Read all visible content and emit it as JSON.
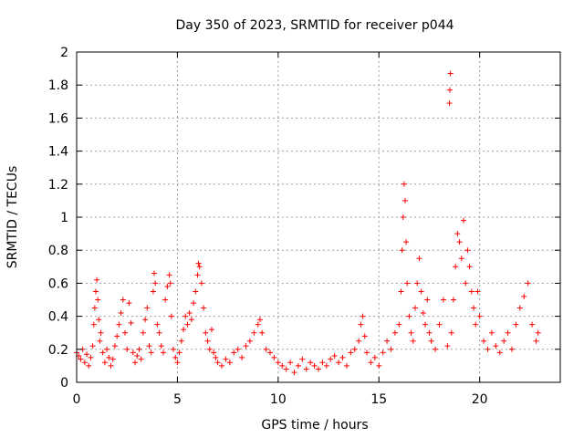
{
  "chart_data": {
    "type": "scatter",
    "title": "Day 350 of 2023, SRMTID for receiver p044",
    "xlabel": "GPS time / hours",
    "ylabel": "SRMTID / TECUs",
    "xlim": [
      0,
      24
    ],
    "ylim": [
      0,
      2
    ],
    "x_ticks": [
      0,
      5,
      10,
      15,
      20
    ],
    "x_tick_labels": [
      "0",
      "5",
      "10",
      "15",
      "20"
    ],
    "y_ticks": [
      0,
      0.2,
      0.4,
      0.6,
      0.8,
      1,
      1.2,
      1.4,
      1.6,
      1.8,
      2
    ],
    "y_tick_labels": [
      "0",
      "0.2",
      "0.4",
      "0.6",
      "0.8",
      "1",
      "1.2",
      "1.4",
      "1.6",
      "1.8",
      "2"
    ],
    "grid": true,
    "marker": "+",
    "series_color": "#ff0000",
    "series": [
      {
        "name": "SRMTID",
        "points": [
          [
            0.0,
            0.18
          ],
          [
            0.1,
            0.16
          ],
          [
            0.2,
            0.14
          ],
          [
            0.3,
            0.2
          ],
          [
            0.4,
            0.12
          ],
          [
            0.5,
            0.17
          ],
          [
            0.6,
            0.1
          ],
          [
            0.7,
            0.15
          ],
          [
            0.8,
            0.22
          ],
          [
            0.85,
            0.35
          ],
          [
            0.9,
            0.45
          ],
          [
            0.95,
            0.55
          ],
          [
            1.0,
            0.62
          ],
          [
            1.05,
            0.5
          ],
          [
            1.1,
            0.38
          ],
          [
            1.15,
            0.25
          ],
          [
            1.2,
            0.3
          ],
          [
            1.3,
            0.18
          ],
          [
            1.4,
            0.12
          ],
          [
            1.5,
            0.2
          ],
          [
            1.6,
            0.15
          ],
          [
            1.7,
            0.1
          ],
          [
            1.8,
            0.14
          ],
          [
            1.9,
            0.22
          ],
          [
            2.0,
            0.28
          ],
          [
            2.1,
            0.35
          ],
          [
            2.2,
            0.42
          ],
          [
            2.3,
            0.5
          ],
          [
            2.4,
            0.3
          ],
          [
            2.5,
            0.2
          ],
          [
            2.6,
            0.48
          ],
          [
            2.7,
            0.36
          ],
          [
            2.8,
            0.18
          ],
          [
            2.9,
            0.12
          ],
          [
            3.0,
            0.16
          ],
          [
            3.1,
            0.2
          ],
          [
            3.2,
            0.14
          ],
          [
            3.3,
            0.3
          ],
          [
            3.4,
            0.38
          ],
          [
            3.5,
            0.45
          ],
          [
            3.6,
            0.22
          ],
          [
            3.7,
            0.18
          ],
          [
            3.8,
            0.55
          ],
          [
            3.85,
            0.66
          ],
          [
            3.9,
            0.6
          ],
          [
            4.0,
            0.35
          ],
          [
            4.1,
            0.3
          ],
          [
            4.2,
            0.22
          ],
          [
            4.3,
            0.18
          ],
          [
            4.4,
            0.5
          ],
          [
            4.5,
            0.58
          ],
          [
            4.6,
            0.65
          ],
          [
            4.65,
            0.6
          ],
          [
            4.7,
            0.4
          ],
          [
            4.8,
            0.2
          ],
          [
            4.9,
            0.15
          ],
          [
            5.0,
            0.12
          ],
          [
            5.1,
            0.18
          ],
          [
            5.2,
            0.25
          ],
          [
            5.3,
            0.32
          ],
          [
            5.4,
            0.4
          ],
          [
            5.5,
            0.35
          ],
          [
            5.6,
            0.42
          ],
          [
            5.7,
            0.38
          ],
          [
            5.8,
            0.48
          ],
          [
            5.9,
            0.55
          ],
          [
            6.0,
            0.65
          ],
          [
            6.05,
            0.72
          ],
          [
            6.1,
            0.7
          ],
          [
            6.2,
            0.6
          ],
          [
            6.3,
            0.45
          ],
          [
            6.4,
            0.3
          ],
          [
            6.5,
            0.25
          ],
          [
            6.6,
            0.2
          ],
          [
            6.7,
            0.32
          ],
          [
            6.8,
            0.18
          ],
          [
            6.9,
            0.15
          ],
          [
            7.0,
            0.12
          ],
          [
            7.2,
            0.1
          ],
          [
            7.4,
            0.14
          ],
          [
            7.6,
            0.12
          ],
          [
            7.8,
            0.18
          ],
          [
            8.0,
            0.2
          ],
          [
            8.2,
            0.15
          ],
          [
            8.4,
            0.22
          ],
          [
            8.6,
            0.25
          ],
          [
            8.8,
            0.3
          ],
          [
            9.0,
            0.35
          ],
          [
            9.1,
            0.38
          ],
          [
            9.2,
            0.3
          ],
          [
            9.4,
            0.2
          ],
          [
            9.6,
            0.18
          ],
          [
            9.8,
            0.15
          ],
          [
            10.0,
            0.12
          ],
          [
            10.2,
            0.1
          ],
          [
            10.4,
            0.08
          ],
          [
            10.6,
            0.12
          ],
          [
            10.8,
            0.06
          ],
          [
            11.0,
            0.1
          ],
          [
            11.2,
            0.14
          ],
          [
            11.4,
            0.08
          ],
          [
            11.6,
            0.12
          ],
          [
            11.8,
            0.1
          ],
          [
            12.0,
            0.08
          ],
          [
            12.2,
            0.12
          ],
          [
            12.4,
            0.1
          ],
          [
            12.6,
            0.14
          ],
          [
            12.8,
            0.16
          ],
          [
            13.0,
            0.12
          ],
          [
            13.2,
            0.15
          ],
          [
            13.4,
            0.1
          ],
          [
            13.6,
            0.18
          ],
          [
            13.8,
            0.2
          ],
          [
            14.0,
            0.25
          ],
          [
            14.1,
            0.35
          ],
          [
            14.2,
            0.4
          ],
          [
            14.3,
            0.28
          ],
          [
            14.4,
            0.18
          ],
          [
            14.6,
            0.12
          ],
          [
            14.8,
            0.15
          ],
          [
            15.0,
            0.1
          ],
          [
            15.2,
            0.18
          ],
          [
            15.4,
            0.25
          ],
          [
            15.6,
            0.2
          ],
          [
            15.8,
            0.3
          ],
          [
            16.0,
            0.35
          ],
          [
            16.1,
            0.55
          ],
          [
            16.15,
            0.8
          ],
          [
            16.2,
            1.0
          ],
          [
            16.25,
            1.2
          ],
          [
            16.3,
            1.1
          ],
          [
            16.35,
            0.85
          ],
          [
            16.4,
            0.6
          ],
          [
            16.5,
            0.4
          ],
          [
            16.6,
            0.3
          ],
          [
            16.7,
            0.25
          ],
          [
            16.8,
            0.45
          ],
          [
            16.9,
            0.6
          ],
          [
            17.0,
            0.75
          ],
          [
            17.1,
            0.55
          ],
          [
            17.2,
            0.42
          ],
          [
            17.3,
            0.35
          ],
          [
            17.4,
            0.5
          ],
          [
            17.5,
            0.3
          ],
          [
            17.6,
            0.25
          ],
          [
            17.8,
            0.2
          ],
          [
            18.0,
            0.35
          ],
          [
            18.2,
            0.5
          ],
          [
            18.4,
            0.22
          ],
          [
            18.5,
            1.69
          ],
          [
            18.52,
            1.77
          ],
          [
            18.55,
            1.87
          ],
          [
            18.6,
            0.3
          ],
          [
            18.7,
            0.5
          ],
          [
            18.8,
            0.7
          ],
          [
            18.9,
            0.9
          ],
          [
            19.0,
            0.85
          ],
          [
            19.1,
            0.75
          ],
          [
            19.2,
            0.98
          ],
          [
            19.3,
            0.6
          ],
          [
            19.4,
            0.8
          ],
          [
            19.5,
            0.7
          ],
          [
            19.6,
            0.55
          ],
          [
            19.7,
            0.45
          ],
          [
            19.8,
            0.35
          ],
          [
            19.9,
            0.55
          ],
          [
            20.0,
            0.4
          ],
          [
            20.2,
            0.25
          ],
          [
            20.4,
            0.2
          ],
          [
            20.6,
            0.3
          ],
          [
            20.8,
            0.22
          ],
          [
            21.0,
            0.18
          ],
          [
            21.2,
            0.25
          ],
          [
            21.4,
            0.3
          ],
          [
            21.6,
            0.2
          ],
          [
            21.8,
            0.35
          ],
          [
            22.0,
            0.45
          ],
          [
            22.2,
            0.52
          ],
          [
            22.4,
            0.6
          ],
          [
            22.6,
            0.35
          ],
          [
            22.8,
            0.25
          ],
          [
            22.9,
            0.3
          ]
        ]
      }
    ]
  }
}
